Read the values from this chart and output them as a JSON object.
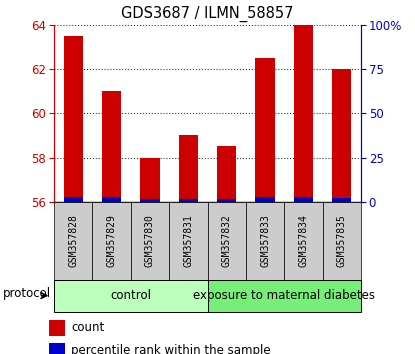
{
  "title": "GDS3687 / ILMN_58857",
  "samples": [
    "GSM357828",
    "GSM357829",
    "GSM357830",
    "GSM357831",
    "GSM357832",
    "GSM357833",
    "GSM357834",
    "GSM357835"
  ],
  "red_values": [
    63.5,
    61.0,
    58.0,
    59.0,
    58.5,
    62.5,
    64.0,
    62.0
  ],
  "blue_values": [
    2.5,
    2.5,
    1.5,
    1.5,
    1.5,
    2.5,
    2.5,
    2.0
  ],
  "ylim_left": [
    56,
    64
  ],
  "ylim_right": [
    0,
    100
  ],
  "yticks_left": [
    56,
    58,
    60,
    62,
    64
  ],
  "yticks_right": [
    0,
    25,
    50,
    75,
    100
  ],
  "ytick_labels_right": [
    "0",
    "25",
    "50",
    "75",
    "100%"
  ],
  "red_color": "#cc0000",
  "blue_color": "#0000cc",
  "bar_width": 0.5,
  "control_label": "control",
  "exposure_label": "exposure to maternal diabetes",
  "control_color": "#bbffbb",
  "exposure_color": "#77ee77",
  "protocol_label": "protocol",
  "legend_count": "count",
  "legend_percentile": "percentile rank within the sample",
  "tick_bg_color": "#cccccc",
  "n_control": 4,
  "n_exposure": 4
}
